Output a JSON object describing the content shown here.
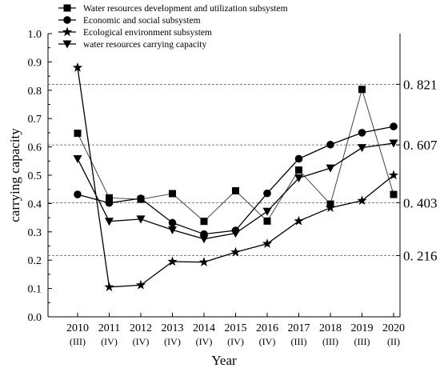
{
  "chart_data": {
    "type": "line",
    "title": "",
    "xlabel": "Year",
    "ylabel": "carrying capacity",
    "ylim": [
      0,
      1.0
    ],
    "yticks": [
      "0.0",
      "0.1",
      "0.2",
      "0.3",
      "0.4",
      "0.5",
      "0.6",
      "0.7",
      "0.8",
      "0.9",
      "1.0"
    ],
    "categories": [
      "2010",
      "2011",
      "2012",
      "2013",
      "2014",
      "2015",
      "2016",
      "2017",
      "2018",
      "2019",
      "2020"
    ],
    "category_sublabels": [
      "(III)",
      "(IV)",
      "(IV)",
      "(IV)",
      "(IV)",
      "(IV)",
      "(IV)",
      "(III)",
      "(III)",
      "(III)",
      "(II)"
    ],
    "grid": false,
    "legend_position": "top-left",
    "series": [
      {
        "name": "Water resources development and utilization subsystem",
        "marker": "square",
        "color": "#444444",
        "values": [
          0.648,
          0.42,
          0.415,
          0.435,
          0.337,
          0.445,
          0.338,
          0.518,
          0.398,
          0.803,
          0.432
        ]
      },
      {
        "name": "Economic and social subsystem",
        "marker": "circle",
        "color": "#000000",
        "values": [
          0.432,
          0.402,
          0.418,
          0.332,
          0.292,
          0.305,
          0.436,
          0.558,
          0.608,
          0.65,
          0.672
        ]
      },
      {
        "name": "Ecological environment subsystem",
        "marker": "star",
        "color": "#000000",
        "values": [
          0.88,
          0.105,
          0.112,
          0.195,
          0.193,
          0.228,
          0.258,
          0.338,
          0.385,
          0.41,
          0.5
        ]
      },
      {
        "name": "water resources carrying capacity",
        "marker": "triangle-down",
        "color": "#000000",
        "values": [
          0.558,
          0.337,
          0.345,
          0.307,
          0.275,
          0.295,
          0.372,
          0.49,
          0.525,
          0.597,
          0.613
        ]
      }
    ],
    "reference_lines": [
      {
        "value": 0.821,
        "label": "0. 821"
      },
      {
        "value": 0.607,
        "label": "0. 607"
      },
      {
        "value": 0.403,
        "label": "0. 403"
      },
      {
        "value": 0.216,
        "label": "0. 216"
      }
    ]
  }
}
